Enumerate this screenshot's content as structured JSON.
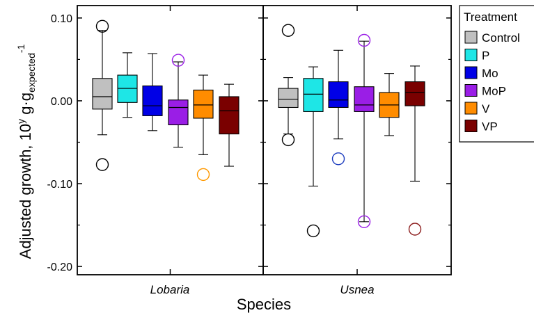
{
  "chart_data": {
    "type": "box",
    "ylabel": {
      "main": "Adjusted growth, 10",
      "sup1": "y",
      "mid": " g·g",
      "sub": "expected",
      "sup2": "-1"
    },
    "xlabel": "Species",
    "ylim": [
      -0.21,
      0.115
    ],
    "yticks": [
      0.1,
      0.0,
      -0.1,
      -0.2
    ],
    "ytick_labels": [
      "0.10",
      "0.00",
      "-0.10",
      "-0.20"
    ],
    "grid": false,
    "legend": {
      "title": "Treatment",
      "placement": "right"
    },
    "series": [
      {
        "name": "Control",
        "color": "#c0c0c0",
        "outlier_color": "#000000"
      },
      {
        "name": "P",
        "color": "#1ee6e6",
        "outlier_color": "#000000"
      },
      {
        "name": "Mo",
        "color": "#0000e6",
        "outlier_color": "#1f3fbf"
      },
      {
        "name": "MoP",
        "color": "#9a1ee6",
        "outlier_color": "#9a1ee6"
      },
      {
        "name": "V",
        "color": "#ff8c00",
        "outlier_color": "#ff9900"
      },
      {
        "name": "VP",
        "color": "#7a0000",
        "outlier_color": "#8b1a1a"
      }
    ],
    "categories": [
      "Lobaria",
      "Usnea"
    ],
    "boxes": [
      [
        {
          "whisker_low": -0.041,
          "q1": -0.01,
          "median": 0.005,
          "q3": 0.027,
          "whisker_high": 0.085,
          "outliers": [
            0.09,
            -0.077
          ]
        },
        {
          "whisker_low": -0.02,
          "q1": -0.002,
          "median": 0.015,
          "q3": 0.031,
          "whisker_high": 0.058,
          "outliers": []
        },
        {
          "whisker_low": -0.036,
          "q1": -0.018,
          "median": -0.006,
          "q3": 0.018,
          "whisker_high": 0.057,
          "outliers": []
        },
        {
          "whisker_low": -0.056,
          "q1": -0.029,
          "median": -0.008,
          "q3": 0.001,
          "whisker_high": 0.047,
          "outliers": [
            0.049
          ]
        },
        {
          "whisker_low": -0.065,
          "q1": -0.021,
          "median": -0.005,
          "q3": 0.013,
          "whisker_high": 0.031,
          "outliers": [
            -0.089
          ]
        },
        {
          "whisker_low": -0.079,
          "q1": -0.04,
          "median": -0.012,
          "q3": 0.005,
          "whisker_high": 0.02,
          "outliers": []
        }
      ],
      [
        {
          "whisker_low": -0.04,
          "q1": -0.008,
          "median": 0.002,
          "q3": 0.015,
          "whisker_high": 0.028,
          "outliers": [
            0.085,
            -0.047
          ]
        },
        {
          "whisker_low": -0.103,
          "q1": -0.013,
          "median": 0.008,
          "q3": 0.027,
          "whisker_high": 0.041,
          "outliers": [
            -0.157
          ]
        },
        {
          "whisker_low": -0.046,
          "q1": -0.008,
          "median": 0.001,
          "q3": 0.023,
          "whisker_high": 0.061,
          "outliers": [
            -0.07
          ]
        },
        {
          "whisker_low": -0.146,
          "q1": -0.013,
          "median": -0.005,
          "q3": 0.017,
          "whisker_high": 0.072,
          "outliers": [
            0.073,
            -0.146
          ]
        },
        {
          "whisker_low": -0.042,
          "q1": -0.02,
          "median": -0.005,
          "q3": 0.01,
          "whisker_high": 0.033,
          "outliers": []
        },
        {
          "whisker_low": -0.097,
          "q1": -0.006,
          "median": 0.01,
          "q3": 0.023,
          "whisker_high": 0.042,
          "outliers": [
            -0.155
          ]
        }
      ]
    ]
  }
}
